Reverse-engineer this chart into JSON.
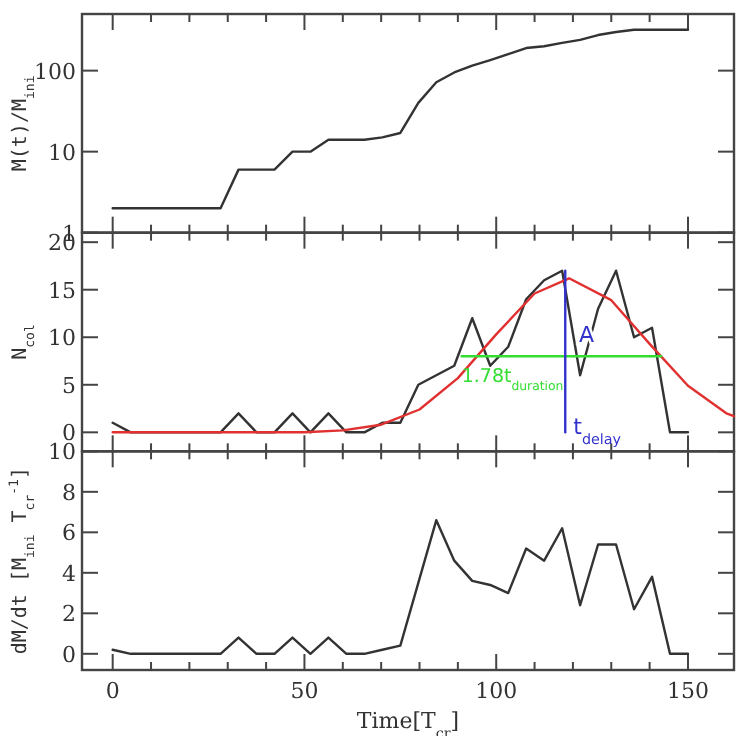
{
  "chart_data": [
    {
      "type": "line",
      "ylabel": "M(t)/M$_{ini}$",
      "log": "y",
      "xlim": [
        -8,
        162
      ],
      "ylim": [
        1,
        500
      ],
      "yticks": [
        1,
        10,
        100
      ],
      "xticks": [
        0,
        {
          "value": 10,
          "label": null
        },
        {
          "value": 20,
          "label": null
        },
        {
          "value": 30,
          "label": null
        },
        {
          "value": 40,
          "label": null
        },
        50,
        {
          "value": 60,
          "label": null
        },
        {
          "value": 70,
          "label": null
        },
        {
          "value": 80,
          "label": null
        },
        {
          "value": 90,
          "label": null
        },
        100,
        {
          "value": 110,
          "label": null
        },
        {
          "value": 120,
          "label": null
        },
        {
          "value": 130,
          "label": null
        },
        {
          "value": 140,
          "label": null
        },
        150
      ],
      "tick_labels": "y",
      "x": [
        0,
        4.69,
        9.38,
        14.06,
        18.75,
        23.44,
        28.13,
        32.81,
        37.5,
        42.19,
        46.88,
        51.56,
        56.25,
        60.94,
        65.63,
        70.31,
        75,
        79.69,
        84.38,
        89.06,
        93.75,
        98.44,
        103.13,
        107.81,
        112.5,
        117.19,
        121.88,
        126.56,
        131.25,
        135.94,
        140.63,
        145.31,
        150
      ],
      "series": [
        {
          "color": "#333333",
          "values": [
            2,
            2,
            2,
            2,
            2,
            2,
            2,
            6,
            6,
            6,
            10,
            10,
            14,
            14,
            14,
            15,
            17,
            40,
            72,
            95,
            115,
            135,
            160,
            190,
            200,
            220,
            240,
            275,
            300,
            320,
            320,
            320,
            320
          ]
        }
      ]
    },
    {
      "type": "line",
      "ylabel": "N$_{col}$",
      "xlim": [
        -8,
        162
      ],
      "ylim": [
        -2,
        21
      ],
      "yticks": [
        0,
        5,
        10,
        15,
        20
      ],
      "xticks": [
        0,
        {
          "value": 10,
          "label": null
        },
        {
          "value": 20,
          "label": null
        },
        {
          "value": 30,
          "label": null
        },
        {
          "value": 40,
          "label": null
        },
        50,
        {
          "value": 60,
          "label": null
        },
        {
          "value": 70,
          "label": null
        },
        {
          "value": 80,
          "label": null
        },
        {
          "value": 90,
          "label": null
        },
        100,
        {
          "value": 110,
          "label": null
        },
        {
          "value": 120,
          "label": null
        },
        {
          "value": 130,
          "label": null
        },
        {
          "value": 140,
          "label": null
        },
        150
      ],
      "tick_labels": "y",
      "x": [
        0,
        4.69,
        9.38,
        14.06,
        18.75,
        23.44,
        28.13,
        32.81,
        37.5,
        42.19,
        46.88,
        51.56,
        56.25,
        60.94,
        65.63,
        70.31,
        75,
        79.69,
        84.38,
        89.06,
        93.75,
        98.44,
        103.13,
        107.81,
        112.5,
        117.19,
        121.88,
        126.56,
        131.25,
        135.94,
        140.63,
        145.31,
        150
      ],
      "series": [
        {
          "color": "#333333",
          "values": [
            1,
            0,
            0,
            0,
            0,
            0,
            0,
            2,
            0,
            0,
            2,
            0,
            2,
            0,
            0,
            1,
            1,
            5,
            6,
            7,
            12,
            7,
            9,
            14,
            16,
            17,
            6,
            13,
            17,
            10,
            11,
            0,
            0
          ]
        },
        {
          "color": "#e03030",
          "x": [
            0,
            50,
            60,
            70,
            80,
            90,
            100,
            110,
            119,
            130,
            140,
            150,
            160,
            162
          ],
          "values": [
            0,
            0,
            0.2,
            0.8,
            2.4,
            5.7,
            10.3,
            14.6,
            16.2,
            13.9,
            9.3,
            4.9,
            2,
            1.7
          ]
        },
        {
          "name": "1.78t$_{duration}$",
          "color": "#33dd33",
          "x": [
            91,
            143
          ],
          "values": [
            8,
            8
          ]
        },
        {
          "name": "t$_{delay}$",
          "color": "#3333cc",
          "x": [
            118,
            118
          ],
          "values": [
            0,
            17
          ]
        }
      ],
      "annotations": [
        {
          "text": "A",
          "x": 119,
          "y": 9.5
        }
      ]
    },
    {
      "type": "line",
      "ylabel": "dM/dt [M$_{ini}$ T$_{cr}$$^{-1}$]",
      "xlabel": "Time[T$_{cr}$]",
      "xlim": [
        -8,
        162
      ],
      "ylim": [
        -0.8,
        10
      ],
      "yticks": [
        0,
        2,
        4,
        6,
        8,
        10
      ],
      "xticks": [
        0,
        {
          "value": 10,
          "label": null
        },
        {
          "value": 20,
          "label": null
        },
        {
          "value": 30,
          "label": null
        },
        {
          "value": 40,
          "label": null
        },
        50,
        {
          "value": 60,
          "label": null
        },
        {
          "value": 70,
          "label": null
        },
        {
          "value": 80,
          "label": null
        },
        {
          "value": 90,
          "label": null
        },
        100,
        {
          "value": 110,
          "label": null
        },
        {
          "value": 120,
          "label": null
        },
        {
          "value": 130,
          "label": null
        },
        {
          "value": 140,
          "label": null
        },
        150
      ],
      "x": [
        0,
        4.69,
        9.38,
        14.06,
        18.75,
        23.44,
        28.13,
        32.81,
        37.5,
        42.19,
        46.88,
        51.56,
        56.25,
        60.94,
        65.63,
        70.31,
        75,
        79.69,
        84.38,
        89.06,
        93.75,
        98.44,
        103.13,
        107.81,
        112.5,
        117.19,
        121.88,
        126.56,
        131.25,
        135.94,
        140.63,
        145.31,
        150
      ],
      "series": [
        {
          "color": "#333333",
          "values": [
            0.2,
            0,
            0,
            0,
            0,
            0,
            0,
            0.8,
            0,
            0,
            0.8,
            0,
            0.8,
            0,
            0,
            0.2,
            0.4,
            3.5,
            6.6,
            4.6,
            3.6,
            3.4,
            3,
            5.2,
            4.6,
            6.2,
            2.4,
            5.4,
            5.4,
            2.2,
            3.8,
            0,
            0
          ]
        }
      ]
    }
  ]
}
